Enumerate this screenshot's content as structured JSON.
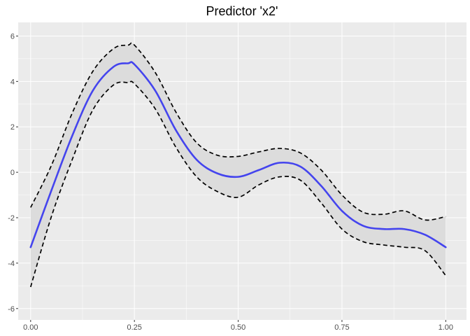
{
  "chart_data": {
    "type": "line",
    "title": "Predictor 'x2'",
    "xlabel": "",
    "ylabel": "",
    "xlim": [
      -0.03,
      1.05
    ],
    "ylim": [
      -6.5,
      6.6
    ],
    "x_ticks": [
      0.0,
      0.25,
      0.5,
      0.75,
      1.0
    ],
    "x_tick_labels": [
      "0.00",
      "0.25",
      "0.50",
      "0.75",
      "1.00"
    ],
    "y_ticks": [
      -6,
      -4,
      -2,
      0,
      2,
      4,
      6
    ],
    "y_tick_labels": [
      "-6",
      "-4",
      "-2",
      "0",
      "2",
      "4",
      "6"
    ],
    "grid": true,
    "x": [
      0.0,
      0.05,
      0.1,
      0.15,
      0.2,
      0.235,
      0.25,
      0.3,
      0.35,
      0.4,
      0.45,
      0.5,
      0.55,
      0.6,
      0.65,
      0.7,
      0.75,
      0.8,
      0.85,
      0.9,
      0.95,
      1.0
    ],
    "estimate": [
      -3.3,
      -0.8,
      1.6,
      3.6,
      4.65,
      4.8,
      4.75,
      3.6,
      1.85,
      0.55,
      -0.05,
      -0.2,
      0.1,
      0.42,
      0.25,
      -0.6,
      -1.7,
      -2.35,
      -2.5,
      -2.5,
      -2.75,
      -3.3
    ],
    "upper": [
      -1.55,
      0.3,
      2.6,
      4.45,
      5.45,
      5.6,
      5.6,
      4.4,
      2.65,
      1.3,
      0.75,
      0.7,
      0.9,
      1.05,
      0.85,
      0.1,
      -1.0,
      -1.75,
      -1.85,
      -1.7,
      -2.1,
      -1.95
    ],
    "lower": [
      -5.05,
      -1.95,
      0.55,
      2.75,
      3.85,
      3.95,
      3.9,
      2.8,
      1.1,
      -0.2,
      -0.85,
      -1.1,
      -0.55,
      -0.2,
      -0.35,
      -1.35,
      -2.5,
      -3.05,
      -3.2,
      -3.3,
      -3.45,
      -4.55
    ],
    "series": [
      {
        "values_key": "estimate",
        "style": "solid",
        "color": "#4444ee"
      },
      {
        "values_key": "upper",
        "style": "dashed",
        "color": "#000000"
      },
      {
        "values_key": "lower",
        "style": "dashed",
        "color": "#000000"
      }
    ],
    "colors": {
      "panel_bg": "#ebebeb",
      "grid_major": "#ffffff",
      "ribbon": "#dcdcdc",
      "estimate_line": "#4444ee",
      "band_line": "#000000",
      "tick_mark": "#333333",
      "tick_text": "#4d4d4d"
    }
  }
}
